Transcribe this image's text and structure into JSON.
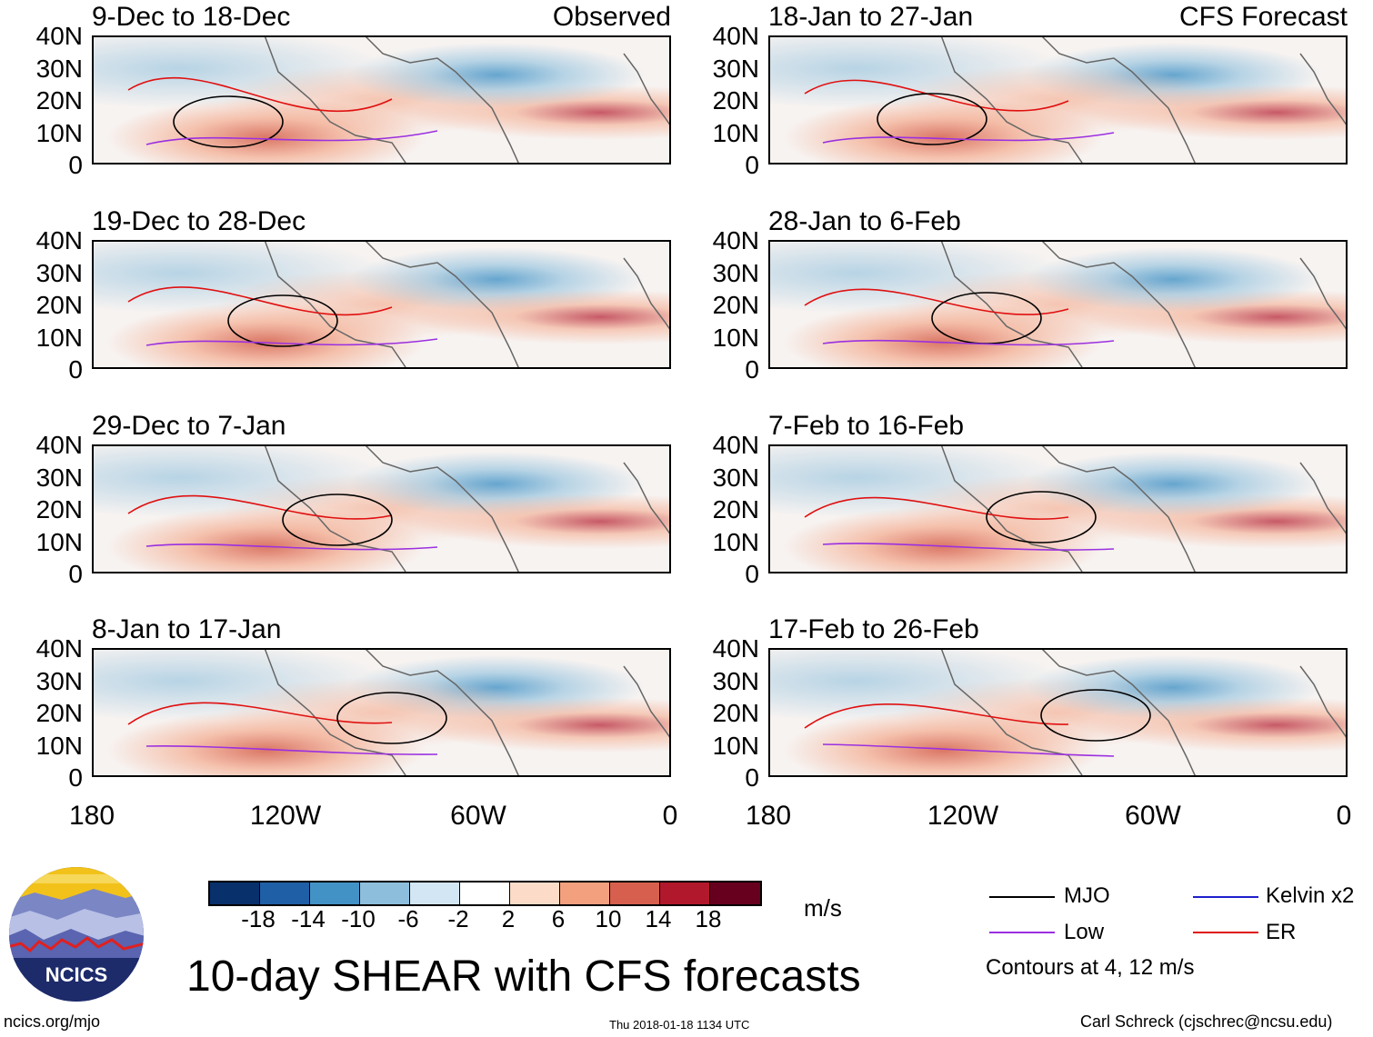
{
  "panels": [
    {
      "title": "9-Dec to 18-Dec",
      "tag": "Observed"
    },
    {
      "title": "18-Jan to 27-Jan",
      "tag": "CFS Forecast"
    },
    {
      "title": "19-Dec to 28-Dec",
      "tag": ""
    },
    {
      "title": "28-Jan to 6-Feb",
      "tag": ""
    },
    {
      "title": "29-Dec to 7-Jan",
      "tag": ""
    },
    {
      "title": "7-Feb to 16-Feb",
      "tag": ""
    },
    {
      "title": "8-Jan to 17-Jan",
      "tag": ""
    },
    {
      "title": "17-Feb to 26-Feb",
      "tag": ""
    }
  ],
  "y_ticks": [
    "40N",
    "30N",
    "20N",
    "10N",
    "0"
  ],
  "x_ticks": [
    "180",
    "120W",
    "60W",
    "0"
  ],
  "colorbar": {
    "colors": [
      "#08306b",
      "#1f5fa6",
      "#4292c6",
      "#8dbfdd",
      "#d3e6f3",
      "#ffffff",
      "#fcdcc8",
      "#f3a07f",
      "#d6604d",
      "#b2182b",
      "#67001f"
    ],
    "labels": [
      "-18",
      "-14",
      "-10",
      "-6",
      "-2",
      "2",
      "6",
      "10",
      "14",
      "18"
    ],
    "unit": "m/s"
  },
  "legend": {
    "items": [
      {
        "label": "MJO",
        "color": "#000000"
      },
      {
        "label": "Kelvin x2",
        "color": "#1f1fcc"
      },
      {
        "label": "Low",
        "color": "#9b30e0"
      },
      {
        "label": "ER",
        "color": "#e01010"
      }
    ],
    "note": "Contours at 4, 12 m/s"
  },
  "main_title": "10-day SHEAR with CFS forecasts",
  "logo_text": "NCICS",
  "footer": {
    "left": "ncics.org/mjo",
    "center": "Thu 2018-01-18 1134 UTC",
    "right": "Carl Schreck (cjschrec@ncsu.edu)"
  }
}
